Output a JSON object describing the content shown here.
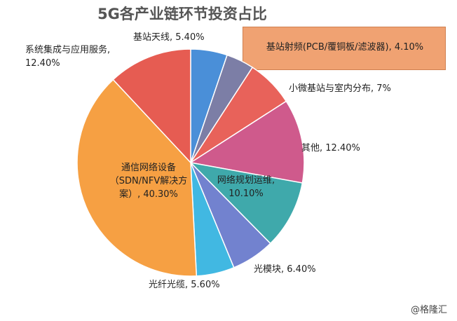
{
  "chart_data": {
    "type": "pie",
    "title": "5G各产业链环节投资占比",
    "categories": [
      "基站天线",
      "基站射频(PCB/覆铜板/滤波器)",
      "小微基站与室内分布",
      "其他",
      "网络规划运维",
      "光模块",
      "光纤光缆",
      "通信网络设备（SDN/NFV解决方案）",
      "系统集成与应用服务"
    ],
    "values": [
      5.4,
      4.1,
      7,
      12.4,
      10.1,
      6.4,
      5.6,
      40.3,
      12.4
    ],
    "value_labels": [
      "5.40%",
      "4.10%",
      "7%",
      "12.40%",
      "10.10%",
      "6.40%",
      "5.60%",
      "40.30%",
      "12.40%"
    ],
    "colors": [
      "#4a8fd8",
      "#7c7ea6",
      "#e8625a",
      "#cf5a8c",
      "#3fa9ab",
      "#7282cf",
      "#41b8e2",
      "#f6a043",
      "#e65c52"
    ],
    "source": "@格隆汇"
  }
}
